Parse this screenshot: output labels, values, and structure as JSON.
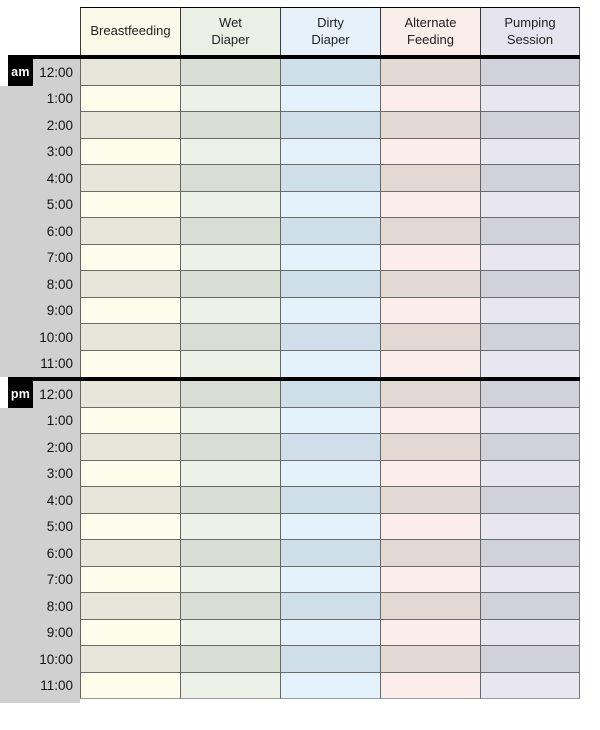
{
  "columns": [
    {
      "id": "breastfeeding",
      "label": "Breastfeeding",
      "header_color": "#fbfae9",
      "row_light": "#fefdec",
      "row_dark": "#e7e6da"
    },
    {
      "id": "wet-diaper",
      "label": "Wet\nDiaper",
      "header_color": "#ebf0e7",
      "row_light": "#edf2e9",
      "row_dark": "#d8ded3"
    },
    {
      "id": "dirty-diaper",
      "label": "Dirty\nDiaper",
      "header_color": "#e7f1f9",
      "row_light": "#e4f2fb",
      "row_dark": "#cfdfe9"
    },
    {
      "id": "alternate-feeding",
      "label": "Alternate\nFeeding",
      "header_color": "#faeeeb",
      "row_light": "#fbeeea",
      "row_dark": "#e2d9d3"
    },
    {
      "id": "pumping-session",
      "label": "Pumping\nSession",
      "header_color": "#e6e5ef",
      "row_light": "#e7e6f1",
      "row_dark": "#d1d1dc"
    }
  ],
  "sections": [
    {
      "meridiem": "am",
      "times": [
        "12:00",
        "1:00",
        "2:00",
        "3:00",
        "4:00",
        "5:00",
        "6:00",
        "7:00",
        "8:00",
        "9:00",
        "10:00",
        "11:00"
      ]
    },
    {
      "meridiem": "pm",
      "times": [
        "12:00",
        "1:00",
        "2:00",
        "3:00",
        "4:00",
        "5:00",
        "6:00",
        "7:00",
        "8:00",
        "9:00",
        "10:00",
        "11:00"
      ]
    }
  ],
  "colors": {
    "time_column": "#d0d0d0",
    "badge_bg": "#000000",
    "badge_text": "#ffffff",
    "thick_bar": "#000000",
    "grid_border": "#666666"
  }
}
